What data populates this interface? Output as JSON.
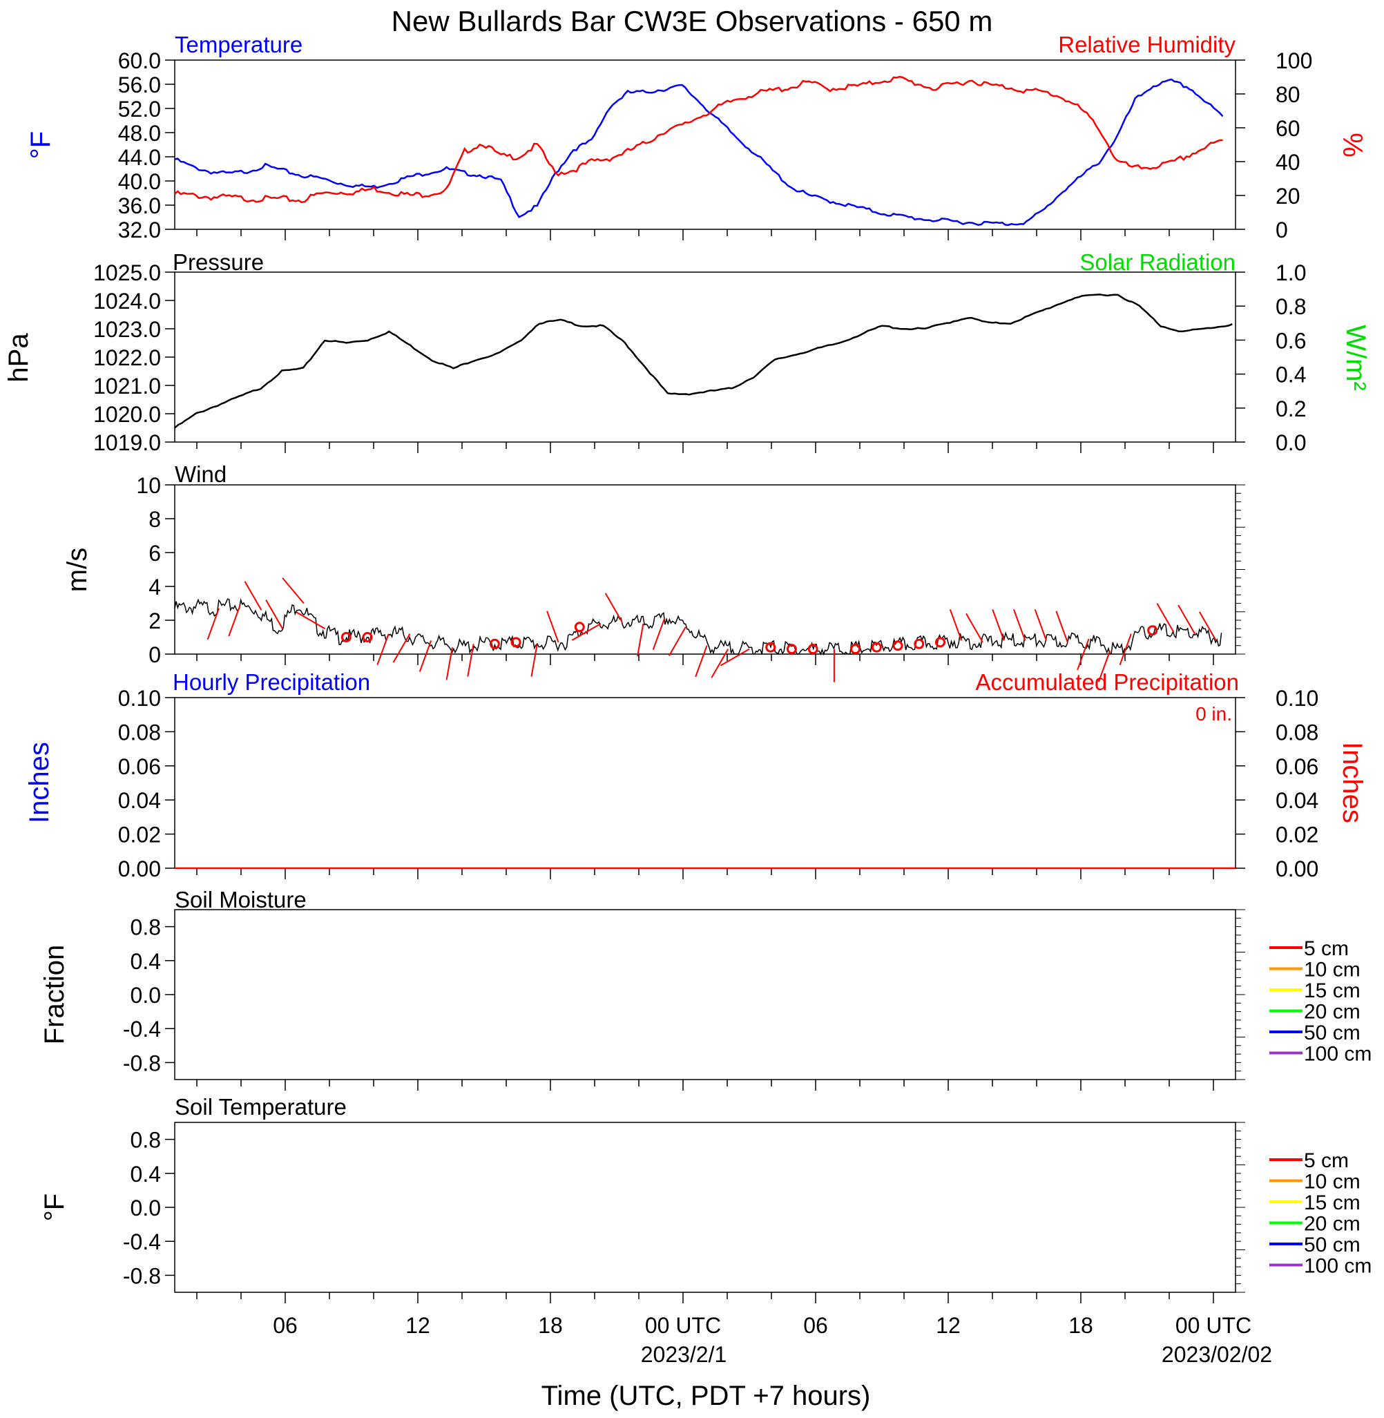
{
  "title": "New Bullards Bar CW3E Observations - 650 m",
  "colors": {
    "temperature": "#0000ff",
    "humidity": "#ff0000",
    "pressure": "#000000",
    "solar": "#00dd00",
    "wind": "#000000",
    "barb": "#ff0000",
    "hourly_precip": "#0000ff",
    "accum_precip": "#ff0000",
    "soil_legend": [
      "#ff0000",
      "#ff9900",
      "#ffff00",
      "#00ff00",
      "#0000ff",
      "#9933cc"
    ]
  },
  "x_axis": {
    "label": "Time (UTC, PDT +7 hours)",
    "range_hours_since_2023_01_31_01utc": [
      0,
      48
    ],
    "tick_labels": [
      "06",
      "12",
      "18",
      "00 UTC",
      "06",
      "12",
      "18",
      "00 UTC"
    ],
    "date_labels": [
      "2023/2/1",
      "2023/02/02"
    ]
  },
  "chart_data": [
    {
      "type": "line",
      "panel": "temperature_humidity",
      "left_title": "Temperature",
      "right_title": "Relative Humidity",
      "left_unit": "oF",
      "right_unit": "%",
      "left_ticks": [
        "60.0",
        "56.0",
        "52.0",
        "48.0",
        "44.0",
        "40.0",
        "36.0",
        "32.0"
      ],
      "right_ticks": [
        "100",
        "80",
        "60",
        "40",
        "20",
        "0"
      ],
      "ylim_left": [
        32,
        60
      ],
      "ylim_right": [
        0,
        100
      ],
      "x_start": "2023-01-31 01 UTC",
      "x_step_hours": 1,
      "series": [
        {
          "name": "Temperature",
          "axis": "left",
          "values": [
            43.6,
            42.3,
            41.5,
            41.2,
            41.6,
            42.5,
            41.7,
            40.9,
            40.5,
            39.7,
            39.2,
            39.0,
            39.8,
            40.7,
            41.4,
            42.0,
            41.3,
            40.9,
            40.0,
            34.2,
            35.8,
            41.2,
            45.2,
            46.6,
            52.3,
            54.6,
            54.7,
            55.2,
            55.7,
            53.0,
            50.0,
            47.2,
            44.6,
            41.7,
            39.0,
            37.6,
            36.8,
            36.1,
            35.4,
            34.7,
            34.2,
            33.8,
            33.5,
            33.3,
            33.1,
            33.0,
            32.9,
            33.2,
            35.3,
            38.3,
            40.7,
            43.1,
            47.3,
            53.4,
            55.8,
            56.5,
            55.4,
            52.8,
            50.2
          ]
        },
        {
          "name": "Relative Humidity",
          "axis": "right",
          "values": [
            21,
            20,
            19,
            19,
            18,
            18,
            18,
            17,
            21,
            22,
            22,
            24,
            22,
            20,
            21,
            23,
            46,
            51,
            43,
            43,
            50,
            33,
            35,
            40,
            42,
            46,
            51,
            58,
            61,
            67,
            72,
            77,
            80,
            82,
            84,
            87,
            83,
            84,
            85,
            88,
            89,
            86,
            83,
            86,
            88,
            85,
            84,
            82,
            81,
            78,
            71,
            60,
            40,
            36,
            37,
            39,
            44,
            49,
            53
          ]
        }
      ]
    },
    {
      "type": "line",
      "panel": "pressure_solar",
      "left_title": "Pressure",
      "right_title": "Solar Radiation",
      "left_unit": "hPa",
      "right_unit": "W/m2",
      "left_ticks": [
        "1025.0",
        "1024.0",
        "1023.0",
        "1022.0",
        "1021.0",
        "1020.0",
        "1019.0"
      ],
      "right_ticks": [
        "1.0",
        "0.8",
        "0.6",
        "0.4",
        "0.2",
        "0.0"
      ],
      "ylim_left": [
        1019,
        1025
      ],
      "ylim_right": [
        0,
        1
      ],
      "x_start": "2023-01-31 01 UTC",
      "x_step_hours": 1,
      "series": [
        {
          "name": "Pressure",
          "axis": "left",
          "values": [
            1019.5,
            1020.0,
            1020.3,
            1020.6,
            1020.9,
            1021.5,
            1021.6,
            1022.6,
            1022.5,
            1022.6,
            1022.9,
            1022.4,
            1021.9,
            1021.6,
            1021.9,
            1022.1,
            1022.5,
            1023.2,
            1023.3,
            1023.1,
            1023.1,
            1022.5,
            1021.6,
            1020.7,
            1020.7,
            1020.8,
            1020.9,
            1021.3,
            1021.9,
            1022.1,
            1022.3,
            1022.5,
            1022.8,
            1023.1,
            1023.0,
            1023.0,
            1023.2,
            1023.4,
            1023.2,
            1023.2,
            1023.5,
            1023.8,
            1024.1,
            1024.2,
            1024.2,
            1023.8,
            1023.1,
            1022.9,
            1023.0,
            1023.1,
            1023.3
          ]
        }
      ]
    },
    {
      "type": "line",
      "panel": "wind",
      "title": "Wind",
      "ylabel": "m/s",
      "y_ticks": [
        "10",
        "8",
        "6",
        "4",
        "2",
        "0"
      ],
      "ylim": [
        0,
        10
      ],
      "x_start": "2023-01-31 01 UTC",
      "x_step_hours": 1,
      "series": [
        {
          "name": "Wind speed",
          "values": [
            2.7,
            2.8,
            2.7,
            2.9,
            2.6,
            1.5,
            3.0,
            1.5,
            1.0,
            1.0,
            1.2,
            1.2,
            0.8,
            0.6,
            0.4,
            0.6,
            0.6,
            0.7,
            0.6,
            0.7,
            1.6,
            1.8,
            1.9,
            1.8,
            2.1,
            1.6,
            0.5,
            0.3,
            0.3,
            0.4,
            0.3,
            0.3,
            0.3,
            0.3,
            0.4,
            0.5,
            0.6,
            0.7,
            0.8,
            0.7,
            0.8,
            0.8,
            0.8,
            0.7,
            0.9,
            0.6,
            0.2,
            1.2,
            1.4,
            1.3,
            1.2,
            0.8
          ]
        }
      ],
      "barb_dir_deg": [
        200,
        200,
        330,
        330,
        320,
        300,
        null,
        null,
        200,
        210,
        200,
        190,
        190,
        null,
        null,
        190,
        340,
        null,
        240,
        330,
        190,
        200,
        210,
        200,
        210,
        240,
        null,
        null,
        null,
        180,
        null,
        null,
        null,
        null,
        null,
        340,
        330,
        340,
        340,
        340,
        340,
        200,
        200,
        200,
        null,
        330,
        330,
        330,
        340,
        190
      ]
    },
    {
      "type": "line",
      "panel": "precipitation",
      "left_title": "Hourly Precipitation",
      "right_title": "Accumulated Precipitation",
      "total_label": "0 in.",
      "left_unit": "Inches",
      "right_unit": "Inches",
      "left_ticks": [
        "0.10",
        "0.08",
        "0.06",
        "0.04",
        "0.02",
        "0.00"
      ],
      "right_ticks": [
        "0.10",
        "0.08",
        "0.06",
        "0.04",
        "0.02",
        "0.00"
      ],
      "ylim": [
        0,
        0.1
      ],
      "series": [
        {
          "name": "Hourly Precipitation",
          "values": [
            0,
            0
          ]
        },
        {
          "name": "Accumulated Precipitation",
          "values": [
            0,
            0
          ]
        }
      ]
    },
    {
      "type": "line",
      "panel": "soil_moisture",
      "title": "Soil Moisture",
      "ylabel": "Fraction",
      "y_ticks": [
        "0.8",
        "0.4",
        "0.0",
        "-0.4",
        "-0.8"
      ],
      "ylim": [
        -1,
        1
      ],
      "legend": [
        "5 cm",
        "10 cm",
        "15 cm",
        "20 cm",
        "50 cm",
        "100 cm"
      ],
      "series": []
    },
    {
      "type": "line",
      "panel": "soil_temperature",
      "title": "Soil Temperature",
      "ylabel": "oF",
      "y_ticks": [
        "0.8",
        "0.4",
        "0.0",
        "-0.4",
        "-0.8"
      ],
      "ylim": [
        -1,
        1
      ],
      "legend": [
        "5 cm",
        "10 cm",
        "15 cm",
        "20 cm",
        "50 cm",
        "100 cm"
      ],
      "series": []
    }
  ]
}
